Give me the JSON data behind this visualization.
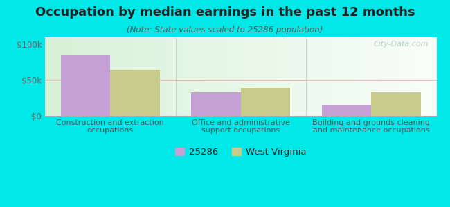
{
  "title": "Occupation by median earnings in the past 12 months",
  "subtitle": "(Note: State values scaled to 25286 population)",
  "categories": [
    "Construction and extraction\noccupations",
    "Office and administrative\nsupport occupations",
    "Building and grounds cleaning\nand maintenance occupations"
  ],
  "series_25286": [
    85000,
    33000,
    15000
  ],
  "series_wv": [
    65000,
    40000,
    33000
  ],
  "color_25286": "#c4a0d4",
  "color_wv": "#c8cc8a",
  "background_outer": "#00e8e8",
  "ylim": [
    0,
    110000
  ],
  "yticks": [
    0,
    50000,
    100000
  ],
  "ytick_labels": [
    "$0",
    "$50k",
    "$100k"
  ],
  "legend_label_25286": "25286",
  "legend_label_wv": "West Virginia",
  "watermark": "City-Data.com",
  "bar_width": 0.38,
  "title_fontsize": 13,
  "subtitle_fontsize": 8.5,
  "tick_fontsize": 8.5,
  "legend_fontsize": 9.5,
  "grid_line_color": "#f0b8b8",
  "spine_color": "#aaaaaa",
  "title_color": "#222222",
  "subtitle_color": "#555555",
  "tick_color": "#666666",
  "watermark_color": "#b0c8c8"
}
